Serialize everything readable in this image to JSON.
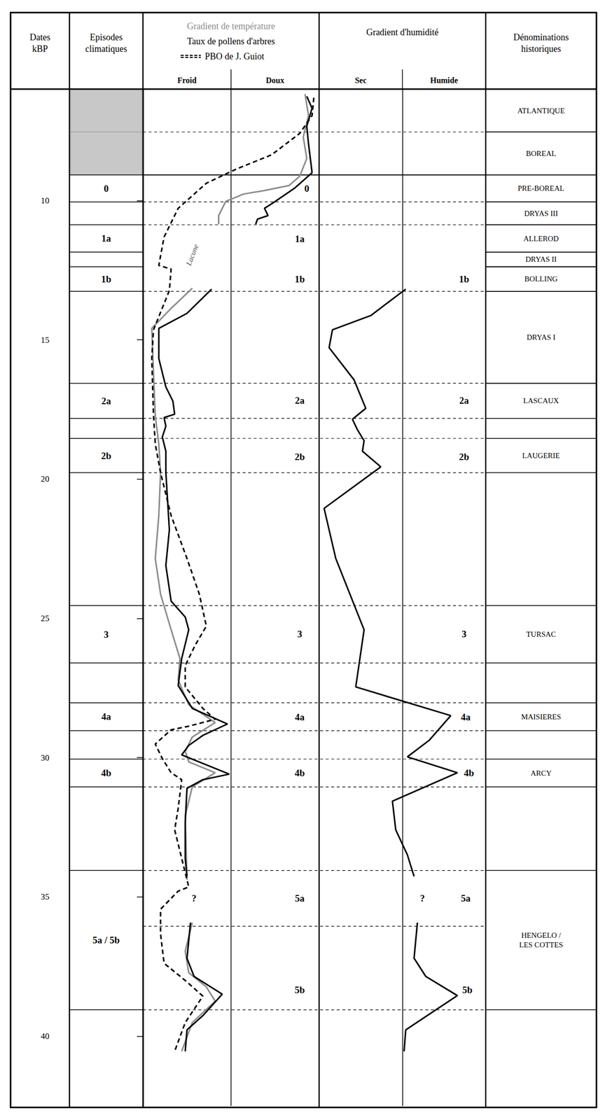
{
  "chart_data": {
    "type": "line",
    "headers": {
      "dates": "Dates\nkBP",
      "episodes": "Episodes\nclimatiques",
      "names": "Dénominations\nhistoriques"
    },
    "ylim": [
      6,
      42.5
    ],
    "yticks": [
      10,
      15,
      20,
      25,
      30,
      35,
      40
    ],
    "tick_labels": "y",
    "grid": true,
    "shaded_episodes": [
      {
        "from": 6,
        "to": 7.54
      },
      {
        "from": 7.54,
        "to": 9.08
      }
    ],
    "episodes": [
      {
        "label": "0",
        "from": 9.08,
        "to": 10.05
      },
      {
        "label": "1a",
        "from": 10.87,
        "to": 11.85
      },
      {
        "label": "1b",
        "from": 12.38,
        "to": 13.26
      },
      {
        "label": "2a",
        "from": 16.56,
        "to": 17.82
      },
      {
        "label": "2b",
        "from": 18.54,
        "to": 19.77
      },
      {
        "label": "3",
        "from": 24.54,
        "to": 26.6
      },
      {
        "label": "4a",
        "from": 28.03,
        "to": 29.03
      },
      {
        "label": "4b",
        "from": 30.05,
        "to": 31.05
      },
      {
        "label": "5a / 5b",
        "from": 34.05,
        "to": 39.05
      }
    ],
    "historical_names": [
      {
        "label": "ATLANTIQUE",
        "from": 6,
        "to": 7.54
      },
      {
        "label": "BOREAL",
        "from": 7.54,
        "to": 9.08
      },
      {
        "label": "PRE-BOREAL",
        "from": 9.08,
        "to": 10.05
      },
      {
        "label": "DRYAS III",
        "from": 10.05,
        "to": 10.87
      },
      {
        "label": "ALLEROD",
        "from": 10.87,
        "to": 11.85
      },
      {
        "label": "DRYAS II",
        "from": 11.85,
        "to": 12.38
      },
      {
        "label": "BOLLING",
        "from": 12.38,
        "to": 13.26
      },
      {
        "label": "DRYAS I",
        "from": 13.26,
        "to": 16.56
      },
      {
        "label": "LASCAUX",
        "from": 16.56,
        "to": 17.82
      },
      {
        "label": "LAUGERIE",
        "from": 18.54,
        "to": 19.77
      },
      {
        "label": "TURSAC",
        "from": 24.54,
        "to": 26.6
      },
      {
        "label": "MAISIERES",
        "from": 28.03,
        "to": 29.03
      },
      {
        "label": "ARCY",
        "from": 30.05,
        "to": 31.05
      },
      {
        "label": "HENGELO /\nLES COTTES",
        "from": 34.05,
        "to": 39.05
      }
    ],
    "panel_lines": [
      {
        "at": 7.54,
        "line_style": "dashed"
      },
      {
        "at": 9.08,
        "line_style": "solid"
      },
      {
        "at": 10.05,
        "line_style": "dashed"
      },
      {
        "at": 10.87,
        "line_style": "dashed"
      },
      {
        "at": 13.26,
        "line_style": "dashed"
      },
      {
        "at": 16.56,
        "line_style": "dashed"
      },
      {
        "at": 17.82,
        "line_style": "dashed"
      },
      {
        "at": 18.54,
        "line_style": "dashed"
      },
      {
        "at": 19.77,
        "line_style": "dashed"
      },
      {
        "at": 24.54,
        "line_style": "dashed"
      },
      {
        "at": 26.6,
        "line_style": "dashed"
      },
      {
        "at": 28.03,
        "line_style": "dashed"
      },
      {
        "at": 29.03,
        "line_style": "dashed"
      },
      {
        "at": 30.05,
        "line_style": "dashed"
      },
      {
        "at": 31.05,
        "line_style": "dashed"
      },
      {
        "at": 34.05,
        "line_style": "dashed"
      },
      {
        "at": 36.05,
        "line_style": "dashed"
      },
      {
        "at": 39.05,
        "line_style": "dashed"
      }
    ],
    "panels": [
      {
        "x_labels": [
          "Froid",
          "Doux"
        ],
        "xlim": [
          0,
          100
        ],
        "xticks": [
          0,
          50,
          100
        ],
        "series": [
          {
            "name": "Gradient de température",
            "color": "#8c8c8c",
            "line_style": "solid",
            "x": [
              92,
              94,
              91,
              93,
              89,
              83,
              69,
              57,
              47,
              43,
              43,
              null,
              28,
              16,
              5,
              6,
              7,
              8,
              9,
              10,
              9,
              7,
              10,
              16,
              21,
              20,
              26,
              41,
              28,
              24,
              26,
              41,
              28,
              24,
              25,
              null,
              28,
              24,
              26,
              36,
              41,
              28,
              22
            ],
            "y": [
              6.18,
              6.95,
              7.72,
              8.49,
              9.13,
              9.46,
              9.64,
              9.77,
              10.03,
              10.54,
              10.85,
              null,
              13.15,
              13.87,
              14.59,
              16.18,
              17.72,
              18.23,
              18.74,
              19.77,
              21.31,
              22.85,
              24.13,
              25.41,
              26.44,
              27.21,
              28.1,
              28.74,
              29.26,
              29.77,
              30.15,
              30.54,
              31.05,
              32.08,
              34.38,
              null,
              35.92,
              36.95,
              37.72,
              38.23,
              38.74,
              39.51,
              40.54
            ]
          },
          {
            "name": "Taux de pollens d'arbres",
            "color": "#000000",
            "line_style": "solid",
            "x": [
              93,
              96,
              93,
              94,
              96,
              86,
              74,
              69,
              71,
              65,
              64,
              null,
              39,
              25,
              9,
              9,
              13,
              17,
              18,
              12,
              13,
              11,
              13,
              13,
              14,
              15,
              13,
              16,
              24,
              26,
              22,
              20,
              28,
              48,
              34,
              26,
              22,
              49,
              34,
              25,
              24,
              24,
              25,
              null,
              27,
              25,
              29,
              45,
              34,
              25,
              24
            ],
            "y": [
              6.26,
              6.69,
              7.33,
              7.97,
              9.0,
              9.56,
              10.08,
              10.28,
              10.54,
              10.67,
              10.85,
              null,
              13.18,
              14.05,
              14.59,
              15.67,
              16.69,
              17.2,
              17.67,
              17.79,
              18.1,
              18.49,
              19.0,
              19.77,
              20.79,
              21.82,
              23.1,
              24.38,
              24.95,
              25.41,
              26.44,
              27.41,
              28.23,
              28.79,
              29.2,
              29.56,
              29.9,
              30.59,
              30.79,
              31.1,
              32.33,
              33.62,
              34.26,
              null,
              35.92,
              37.2,
              37.85,
              38.49,
              39.26,
              39.77,
              40.54
            ]
          },
          {
            "name": "PBO de J. Guiot",
            "color": "#000000",
            "line_style": "dashed",
            "x": [
              97,
              96,
              89,
              73,
              53,
              36,
              20,
              12,
              9,
              16,
              15,
              6,
              5,
              6,
              7,
              10,
              16,
              25,
              32,
              36,
              30,
              24,
              24,
              34,
              41,
              26,
              16,
              7,
              11,
              16,
              22,
              20,
              18,
              26,
              20,
              10,
              10,
              12,
              25,
              34,
              24,
              18
            ],
            "y": [
              6.31,
              6.95,
              7.59,
              8.36,
              8.87,
              9.38,
              10.28,
              11.31,
              12.33,
              12.46,
              13.23,
              14.64,
              15.67,
              17.72,
              18.74,
              19.77,
              21.31,
              22.85,
              24.13,
              25.28,
              25.92,
              26.69,
              27.46,
              28.23,
              28.62,
              28.87,
              29.0,
              29.51,
              30.03,
              30.54,
              30.79,
              31.82,
              32.59,
              34.64,
              34.79,
              35.44,
              36.33,
              37.38,
              38.05,
              38.56,
              39.51,
              40.54
            ]
          }
        ],
        "annotations": [
          {
            "text": "0",
            "x": 93,
            "y": 9.56
          },
          {
            "text": "1a",
            "x": 89,
            "y": 11.38
          },
          {
            "text": "1b",
            "x": 89,
            "y": 12.82
          },
          {
            "text": "2a",
            "x": 89,
            "y": 17.18
          },
          {
            "text": "2b",
            "x": 89,
            "y": 19.2
          },
          {
            "text": "3",
            "x": 89,
            "y": 25.56
          },
          {
            "text": "4a",
            "x": 89,
            "y": 28.54
          },
          {
            "text": "4b",
            "x": 89,
            "y": 30.54
          },
          {
            "text": "5a",
            "x": 89,
            "y": 35.05
          },
          {
            "text": "5b",
            "x": 89,
            "y": 38.33
          },
          {
            "text": "?",
            "x": 29,
            "y": 35.05
          }
        ],
        "gap_label": {
          "text": "Lacune",
          "x": 28,
          "y": 11.95
        }
      },
      {
        "title": "Gradient d'humidité",
        "x_labels": [
          "Sec",
          "Humide"
        ],
        "xlim": [
          0,
          100
        ],
        "xticks": [
          0,
          50,
          100
        ],
        "series": [
          {
            "color": "#000000",
            "line_style": "solid",
            "x": [
              52,
              31,
              8,
              6,
              21,
              28,
              20,
              23,
              27,
              26,
              37,
              3,
              10,
              27,
              22,
              79,
              66,
              53,
              83,
              44,
              46,
              53,
              57,
              null,
              59,
              57,
              64,
              83,
              52,
              51
            ],
            "y": [
              13.18,
              14.13,
              14.64,
              15.28,
              16.44,
              17.46,
              17.85,
              18.23,
              18.62,
              19.0,
              19.56,
              21.05,
              22.85,
              25.41,
              27.46,
              28.49,
              29.38,
              29.97,
              30.54,
              31.56,
              32.59,
              33.49,
              34.26,
              null,
              35.92,
              37.2,
              37.85,
              38.54,
              39.77,
              40.54
            ]
          }
        ],
        "annotations": [
          {
            "text": "1b",
            "x": 87,
            "y": 12.82
          },
          {
            "text": "2a",
            "x": 87,
            "y": 17.18
          },
          {
            "text": "2b",
            "x": 87,
            "y": 19.2
          },
          {
            "text": "3",
            "x": 87,
            "y": 25.56
          },
          {
            "text": "4a",
            "x": 88,
            "y": 28.54
          },
          {
            "text": "4b",
            "x": 90,
            "y": 30.54
          },
          {
            "text": "5a",
            "x": 88,
            "y": 35.05
          },
          {
            "text": "5b",
            "x": 89,
            "y": 38.33
          },
          {
            "text": "?",
            "x": 62,
            "y": 35.05
          }
        ]
      }
    ]
  }
}
